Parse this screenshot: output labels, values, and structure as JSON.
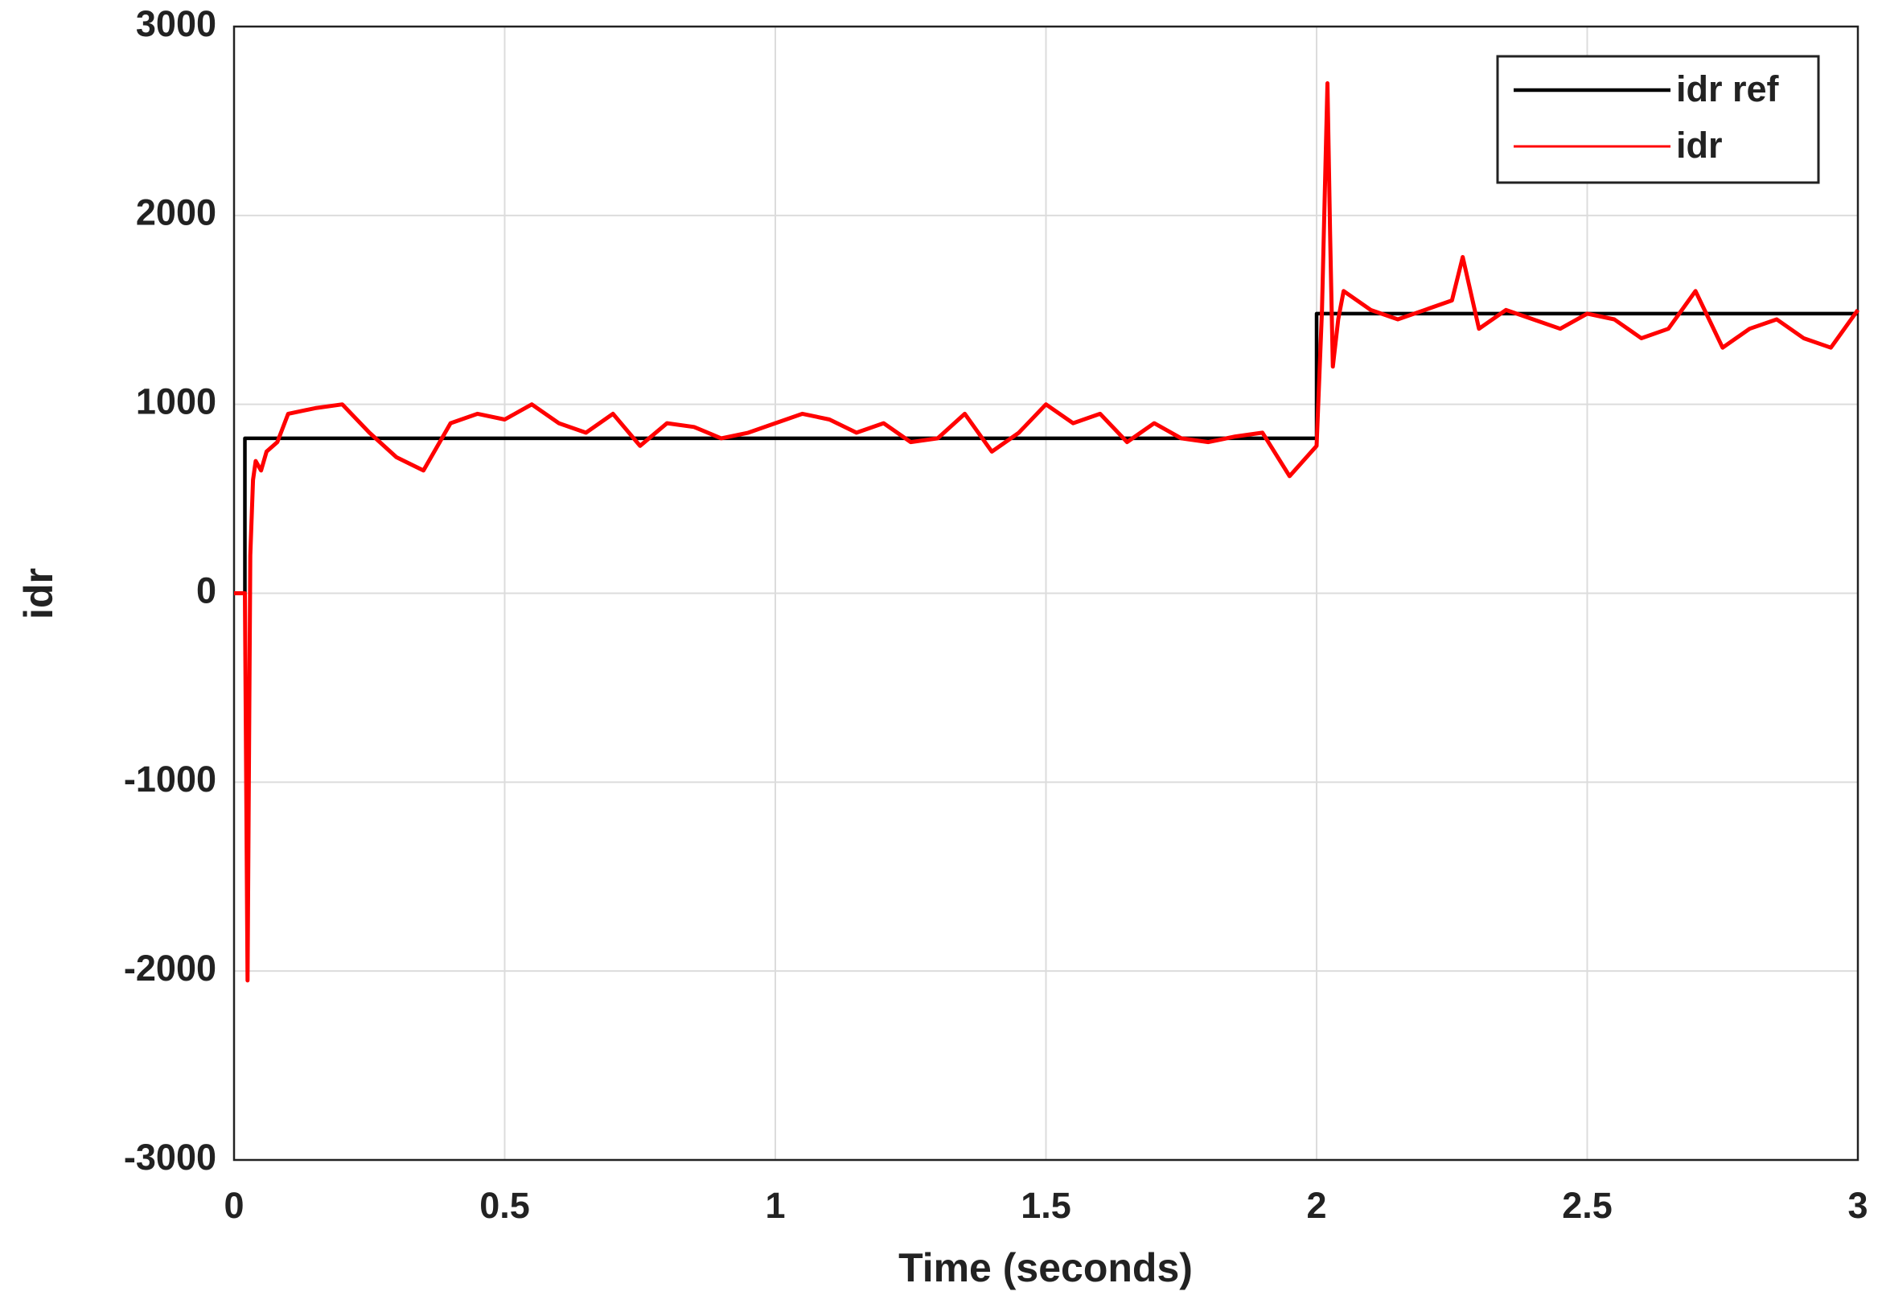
{
  "chart_data": {
    "type": "line",
    "xlabel": "Time (seconds)",
    "ylabel": "idr",
    "x": [
      0,
      0.02,
      0.02,
      0.025,
      0.03,
      0.035,
      0.04,
      0.05,
      0.06,
      0.08,
      0.1,
      0.15,
      0.2,
      0.25,
      0.3,
      0.35,
      0.4,
      0.45,
      0.5,
      0.55,
      0.6,
      0.65,
      0.7,
      0.75,
      0.8,
      0.85,
      0.9,
      0.95,
      1.0,
      1.05,
      1.1,
      1.15,
      1.2,
      1.25,
      1.3,
      1.35,
      1.4,
      1.45,
      1.5,
      1.55,
      1.6,
      1.65,
      1.7,
      1.75,
      1.8,
      1.85,
      1.9,
      1.95,
      2.0,
      2.0,
      2.01,
      2.02,
      2.025,
      2.03,
      2.04,
      2.05,
      2.1,
      2.15,
      2.2,
      2.25,
      2.27,
      2.3,
      2.35,
      2.4,
      2.45,
      2.5,
      2.55,
      2.6,
      2.65,
      2.7,
      2.75,
      2.8,
      2.85,
      2.9,
      2.95,
      3.0
    ],
    "series": [
      {
        "name": "idr ref",
        "color": "#000000",
        "values": [
          0,
          0,
          820,
          820,
          820,
          820,
          820,
          820,
          820,
          820,
          820,
          820,
          820,
          820,
          820,
          820,
          820,
          820,
          820,
          820,
          820,
          820,
          820,
          820,
          820,
          820,
          820,
          820,
          820,
          820,
          820,
          820,
          820,
          820,
          820,
          820,
          820,
          820,
          820,
          820,
          820,
          820,
          820,
          820,
          820,
          820,
          820,
          820,
          820,
          1480,
          1480,
          1480,
          1480,
          1480,
          1480,
          1480,
          1480,
          1480,
          1480,
          1480,
          1480,
          1480,
          1480,
          1480,
          1480,
          1480,
          1480,
          1480,
          1480,
          1480,
          1480,
          1480,
          1480,
          1480,
          1480,
          1480
        ]
      },
      {
        "name": "idr",
        "color": "#ff0000",
        "values": [
          0,
          0,
          0,
          -2050,
          200,
          600,
          700,
          650,
          750,
          800,
          950,
          980,
          1000,
          850,
          720,
          650,
          900,
          950,
          920,
          1000,
          900,
          850,
          950,
          780,
          900,
          880,
          820,
          850,
          900,
          950,
          920,
          850,
          900,
          800,
          820,
          950,
          750,
          850,
          1000,
          900,
          950,
          800,
          900,
          820,
          800,
          830,
          850,
          620,
          780,
          780,
          1500,
          2700,
          1900,
          1200,
          1450,
          1600,
          1500,
          1450,
          1500,
          1550,
          1780,
          1400,
          1500,
          1450,
          1400,
          1480,
          1450,
          1350,
          1400,
          1600,
          1300,
          1400,
          1450,
          1350,
          1300,
          1500
        ]
      }
    ],
    "xlim": [
      0,
      3
    ],
    "xticks": [
      0,
      0.5,
      1,
      1.5,
      2,
      2.5,
      3
    ],
    "ylim": [
      -3000,
      3000
    ],
    "yticks": [
      -3000,
      -2000,
      -1000,
      0,
      1000,
      2000,
      3000
    ],
    "grid": true,
    "legend": "upper right"
  }
}
